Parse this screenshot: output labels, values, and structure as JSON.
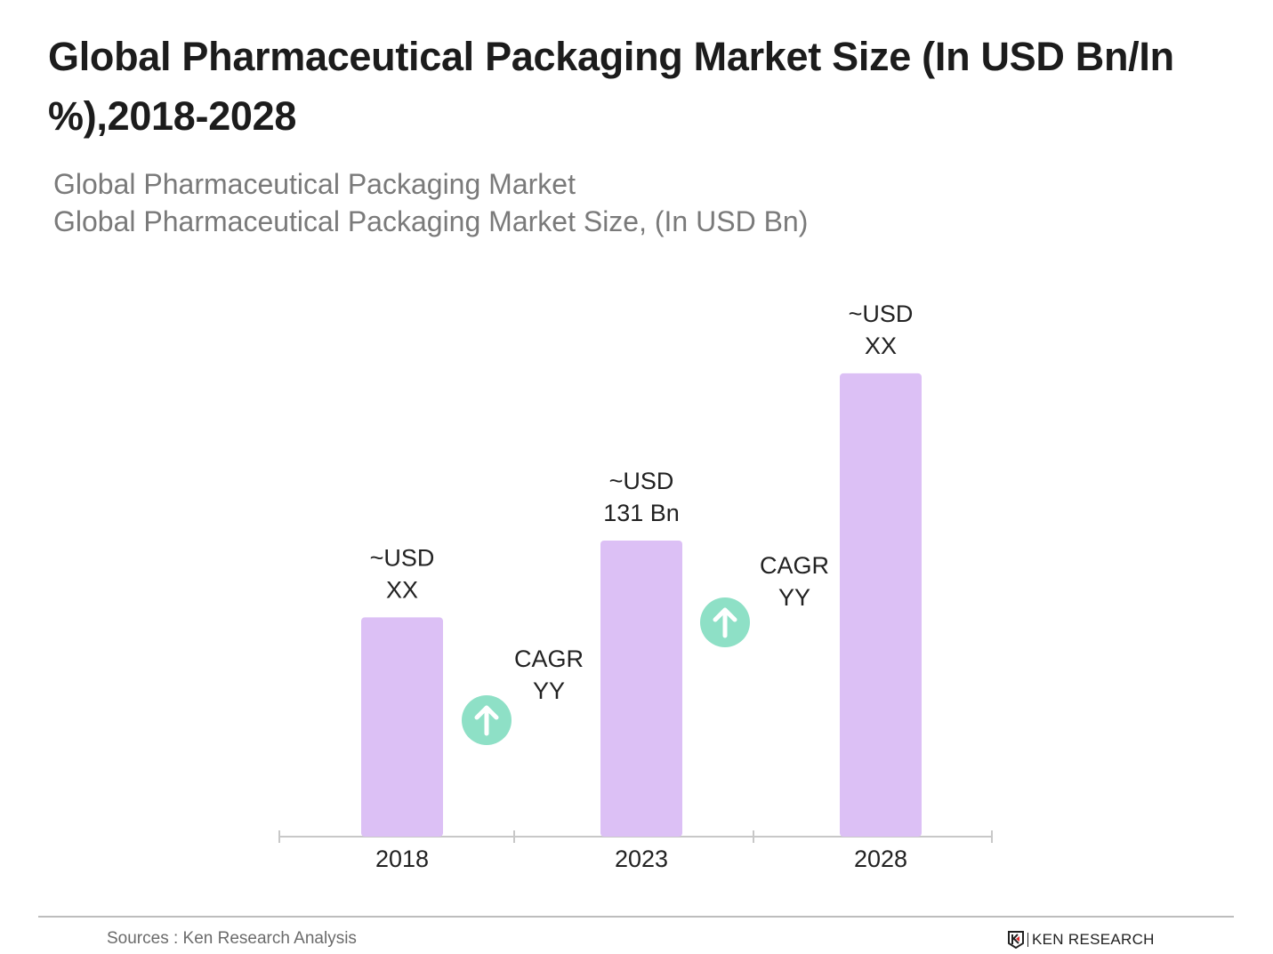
{
  "title": "Global Pharmaceutical Packaging Market Size (In USD Bn/In %),2018-2028",
  "subtitle1": "Global Pharmaceutical Packaging Market",
  "subtitle2": "Global Pharmaceutical Packaging Market Size, (In USD Bn)",
  "source": "Sources : Ken Research Analysis",
  "logo_text": "KEN RESEARCH",
  "colors": {
    "bar": "#dcc0f5",
    "arrow_circle": "#8ee0c6",
    "axis": "#c8c8c8"
  },
  "chart_data": {
    "type": "bar",
    "categories": [
      "2018",
      "2023",
      "2028"
    ],
    "values": [
      97,
      131,
      205
    ],
    "data_labels": [
      [
        "~USD",
        "XX"
      ],
      [
        "~USD",
        "131 Bn"
      ],
      [
        "~USD",
        "XX"
      ]
    ],
    "annotations": [
      {
        "between": [
          "2018",
          "2023"
        ],
        "lines": [
          "CAGR",
          "YY"
        ],
        "icon": "arrow-up-circle-icon"
      },
      {
        "between": [
          "2023",
          "2028"
        ],
        "lines": [
          "CAGR",
          "YY"
        ],
        "icon": "arrow-up-circle-icon"
      }
    ],
    "ylim": [
      0,
      220
    ],
    "grid": false,
    "y_axis_shown": false
  }
}
